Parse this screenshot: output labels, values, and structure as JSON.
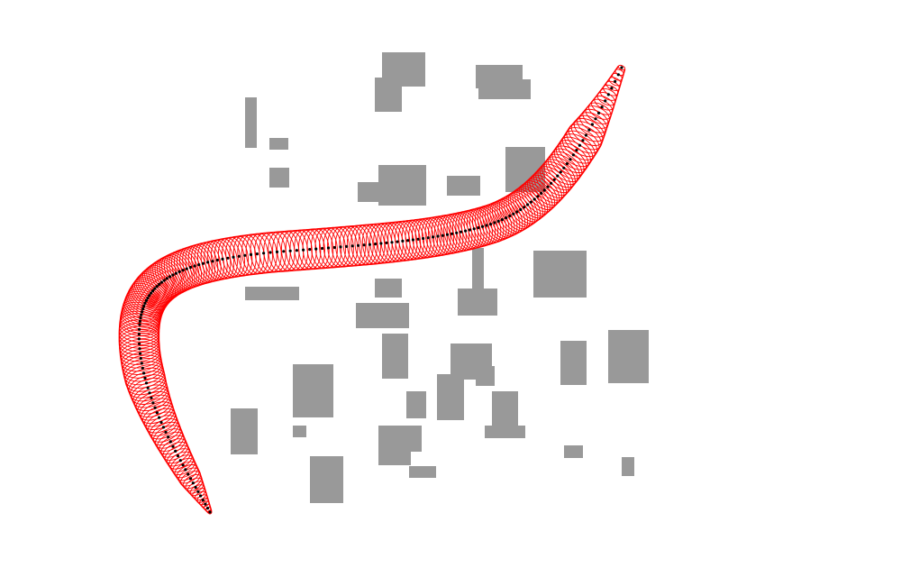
{
  "scene": {
    "background_color": "#ffffff",
    "obstacle_color": "#999999",
    "path_envelope_color": "#ff0000",
    "centerline_color": "#000000",
    "obstacle_count": 31
  }
}
